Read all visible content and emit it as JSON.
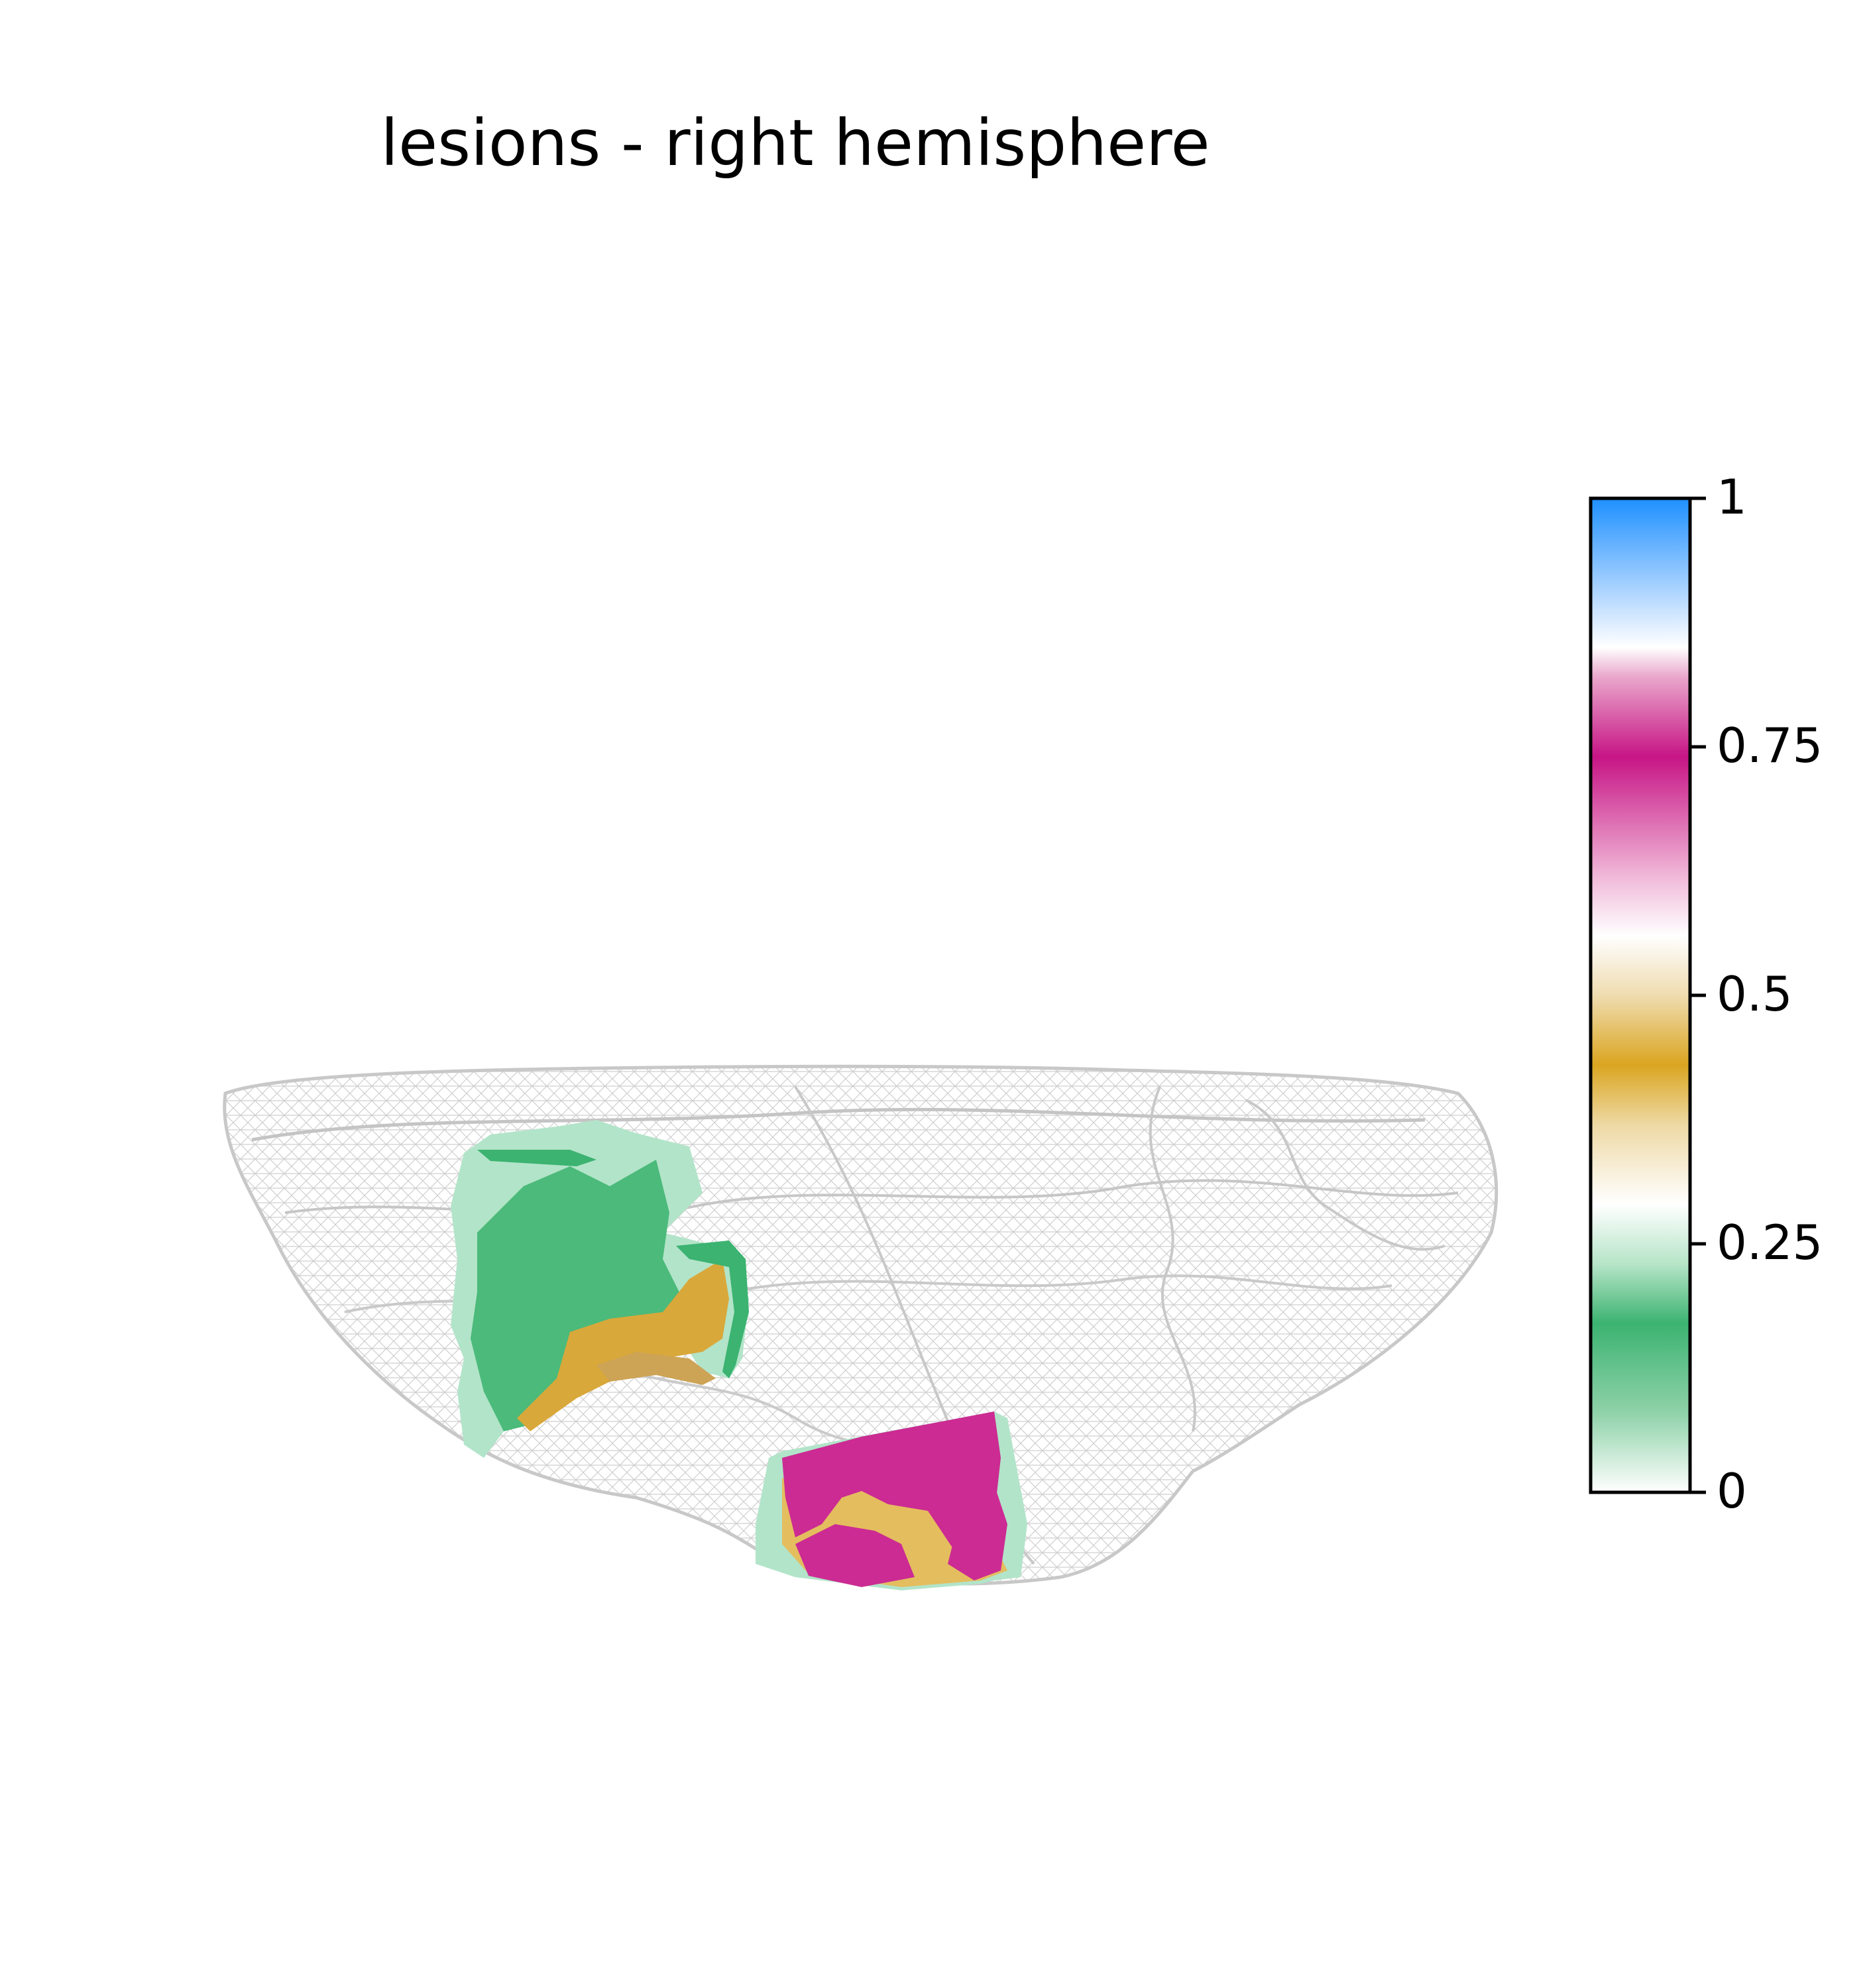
{
  "title": "lesions - right hemisphere",
  "colorbar": {
    "ticks": [
      {
        "value": 1,
        "label": "1"
      },
      {
        "value": 0.75,
        "label": "0.75"
      },
      {
        "value": 0.5,
        "label": "0.5"
      },
      {
        "value": 0.25,
        "label": "0.25"
      },
      {
        "value": 0,
        "label": "0"
      }
    ],
    "colormap": [
      {
        "pos": 0.0,
        "color": "#ffffff"
      },
      {
        "pos": 0.08,
        "color": "#8fd2a9"
      },
      {
        "pos": 0.17,
        "color": "#3cb371"
      },
      {
        "pos": 0.23,
        "color": "#b7e5c8"
      },
      {
        "pos": 0.29,
        "color": "#ffffff"
      },
      {
        "pos": 0.37,
        "color": "#eed9a4"
      },
      {
        "pos": 0.43,
        "color": "#daa520"
      },
      {
        "pos": 0.5,
        "color": "#efdcb0"
      },
      {
        "pos": 0.56,
        "color": "#ffffff"
      },
      {
        "pos": 0.62,
        "color": "#f0b8d8"
      },
      {
        "pos": 0.74,
        "color": "#c71585"
      },
      {
        "pos": 0.82,
        "color": "#e9a6cb"
      },
      {
        "pos": 0.85,
        "color": "#ffffff"
      },
      {
        "pos": 0.9,
        "color": "#b7d9ff"
      },
      {
        "pos": 1.0,
        "color": "#1e90ff"
      }
    ],
    "under_color": "#808080"
  },
  "colors": {
    "brain_mesh": "#d3d3d3",
    "lesion_green": "#4bba7a",
    "lesion_light_green": "#b2e4c9",
    "lesion_gold": "#d9a83a",
    "lesion_magenta": "#cc2b93"
  }
}
